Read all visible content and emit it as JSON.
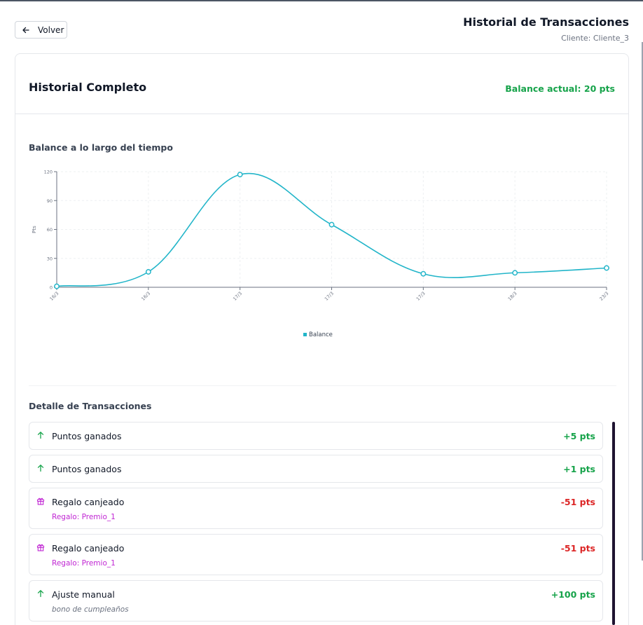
{
  "header": {
    "back_label": "Volver",
    "title": "Historial de Transacciones",
    "subtitle": "Cliente: Cliente_3"
  },
  "card": {
    "title": "Historial Completo",
    "balance": "Balance actual: 20 pts"
  },
  "chart_section": {
    "title": "Balance a lo largo del tiempo"
  },
  "chart_data": {
    "type": "line",
    "categories": [
      "16/3",
      "16/3",
      "17/3",
      "17/3",
      "17/3",
      "18/3",
      "23/3"
    ],
    "series": [
      {
        "name": "Balance",
        "values": [
          1,
          16,
          117,
          65,
          14,
          15,
          20
        ],
        "color": "#22b5c9"
      }
    ],
    "ylabel": "Pts",
    "ylim": [
      0,
      120
    ],
    "yticks": [
      0,
      30,
      60,
      90,
      120
    ],
    "grid": true,
    "legend": "bottom-center"
  },
  "transactions_section": {
    "title": "Detalle de Transacciones"
  },
  "transactions": [
    {
      "icon": "arrow-up-icon",
      "title": "Puntos ganados",
      "amount": "+5 pts",
      "type": "pos",
      "sub": "",
      "sub_type": ""
    },
    {
      "icon": "arrow-up-icon",
      "title": "Puntos ganados",
      "amount": "+1 pts",
      "type": "pos",
      "sub": "",
      "sub_type": ""
    },
    {
      "icon": "gift-icon",
      "title": "Regalo canjeado",
      "amount": "-51 pts",
      "type": "neg",
      "sub": "Regalo: Premio_1",
      "sub_type": "gift"
    },
    {
      "icon": "gift-icon",
      "title": "Regalo canjeado",
      "amount": "-51 pts",
      "type": "neg",
      "sub": "Regalo: Premio_1",
      "sub_type": "gift"
    },
    {
      "icon": "arrow-up-icon",
      "title": "Ajuste manual",
      "amount": "+100 pts",
      "type": "pos",
      "sub": "bono de cumpleaños",
      "sub_type": "note"
    }
  ],
  "colors": {
    "positive": "#16a34a",
    "negative": "#dc2626",
    "gift": "#c026d3",
    "line": "#22b5c9"
  }
}
